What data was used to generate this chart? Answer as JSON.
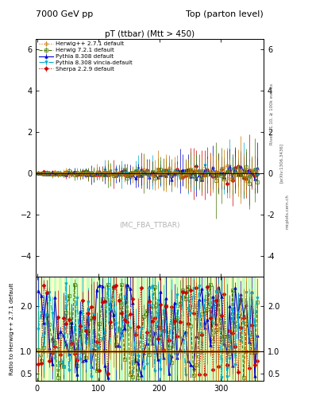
{
  "title_left": "7000 GeV pp",
  "title_right": "Top (parton level)",
  "plot_title": "pT (ttbar) (Mtt > 450)",
  "watermark": "(MC_FBA_TTBAR)",
  "rivet_label": "Rivet 3.1.10, ≥ 100k events",
  "arxiv_label": "[arXiv:1306.3436]",
  "mcplots_label": "mcplots.cern.ch",
  "ylabel_ratio": "Ratio to Herwig++ 2.7.1 default",
  "ylim_main": [
    -5.0,
    6.5
  ],
  "ylim_ratio": [
    0.35,
    2.65
  ],
  "xlim": [
    -2,
    370
  ],
  "yticks_main": [
    -4,
    -2,
    0,
    2,
    4,
    6
  ],
  "yticks_ratio": [
    0.5,
    1.0,
    2.0
  ],
  "xticks": [
    0,
    100,
    200,
    300
  ],
  "n_bins": 80,
  "x_max": 360,
  "series": [
    {
      "label": "Herwig++ 2.7.1 default",
      "color": "#cc7700",
      "marker": "o",
      "linestyle": ":",
      "linewidth": 0.8,
      "markersize": 2.5,
      "seed": 1,
      "mfc": "none"
    },
    {
      "label": "Herwig 7.2.1 default",
      "color": "#447700",
      "marker": "s",
      "linestyle": "--",
      "linewidth": 0.8,
      "markersize": 2.5,
      "seed": 2,
      "mfc": "none"
    },
    {
      "label": "Pythia 8.308 default",
      "color": "#0000cc",
      "marker": "^",
      "linestyle": "-",
      "linewidth": 0.8,
      "markersize": 2.5,
      "seed": 3,
      "mfc": "#0000cc"
    },
    {
      "label": "Pythia 8.308 vincia-default",
      "color": "#00aacc",
      "marker": "v",
      "linestyle": "-.",
      "linewidth": 0.8,
      "markersize": 2.5,
      "seed": 4,
      "mfc": "#00aacc"
    },
    {
      "label": "Sherpa 2.2.9 default",
      "color": "#cc0000",
      "marker": "D",
      "linestyle": ":",
      "linewidth": 0.8,
      "markersize": 2.5,
      "seed": 5,
      "mfc": "#cc0000"
    }
  ],
  "band_colors": [
    "#aaffaa",
    "#ffffaa"
  ],
  "hline_ratio": 1.0,
  "background_color": "#ffffff"
}
